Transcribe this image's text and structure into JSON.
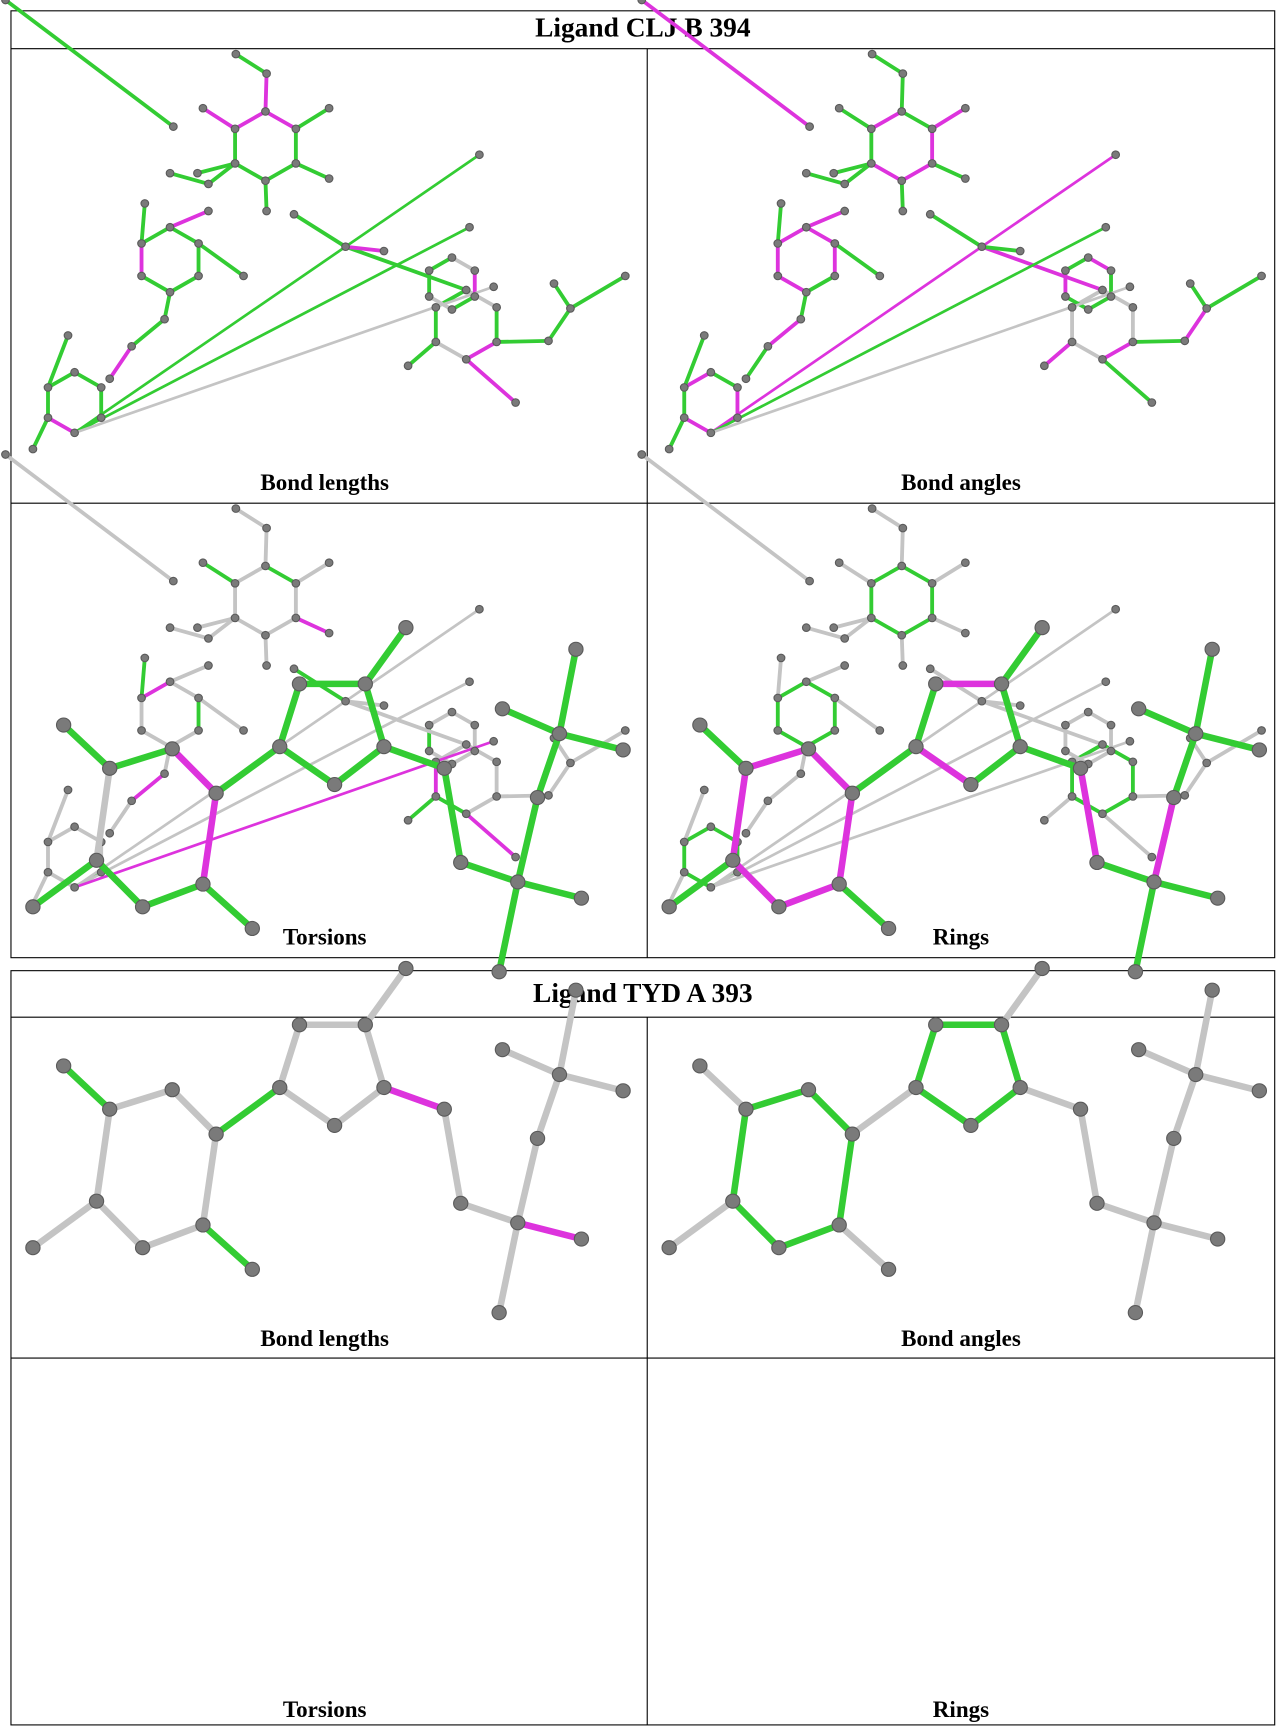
{
  "tables": [
    {
      "title": "Ligand CLJ B 394",
      "panels": [
        {
          "label": "Bond lengths"
        },
        {
          "label": "Bond angles"
        },
        {
          "label": "Torsions"
        },
        {
          "label": "Rings"
        }
      ]
    },
    {
      "title": "Ligand TYD A 393",
      "panels": [
        {
          "label": "Bond lengths"
        },
        {
          "label": "Bond angles"
        },
        {
          "label": "Torsions"
        },
        {
          "label": "Rings"
        }
      ]
    }
  ]
}
